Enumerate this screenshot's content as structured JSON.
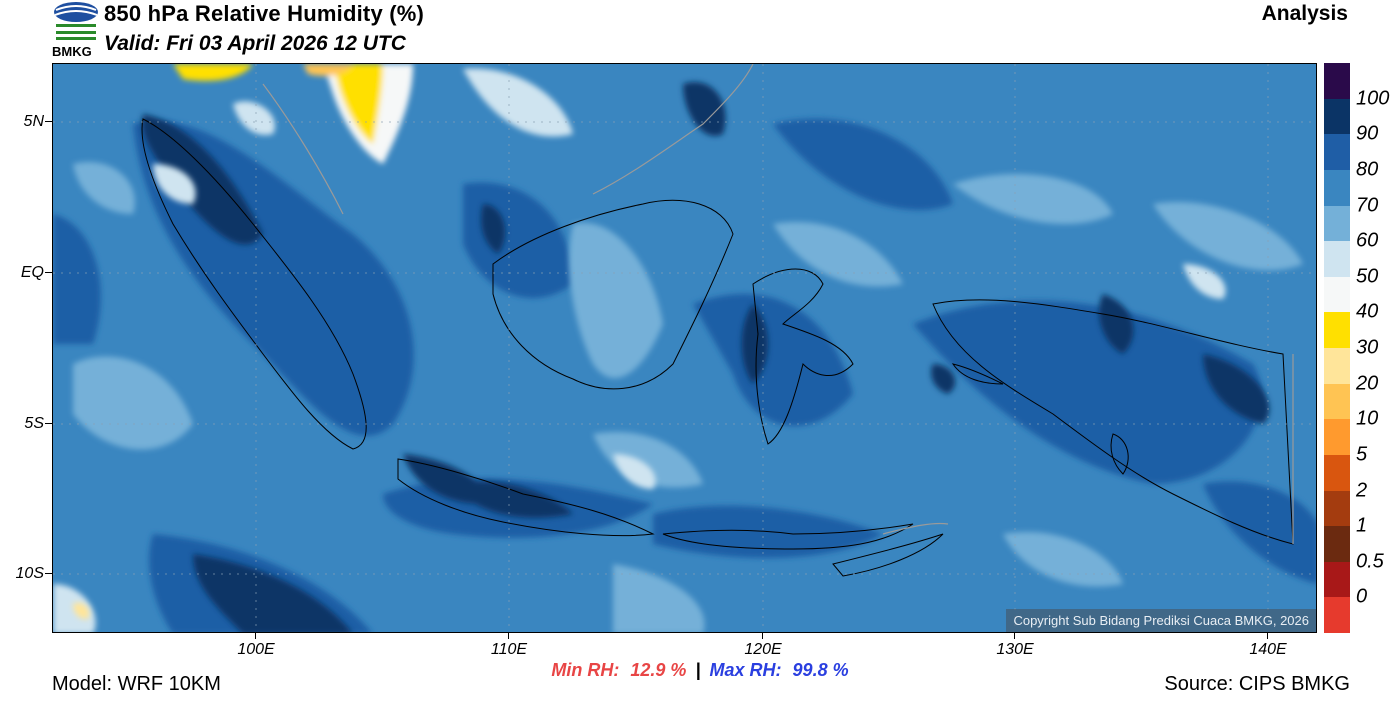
{
  "header": {
    "title": "850 hPa Relative Humidity (%)",
    "valid": "Valid: Fri 03 April 2026 12 UTC",
    "analysis": "Analysis",
    "logo_text": "BMKG"
  },
  "map": {
    "copyright": "Copyright Sub Bidang Prediksi Cuaca BMKG, 2026",
    "lat_labels": [
      "5N",
      "EQ",
      "5S",
      "10S"
    ],
    "lon_labels": [
      "100E",
      "110E",
      "120E",
      "130E",
      "140E"
    ]
  },
  "colorbar": {
    "labels": [
      "100",
      "90",
      "80",
      "70",
      "60",
      "50",
      "40",
      "30",
      "20",
      "10",
      "5",
      "2",
      "1",
      "0.5",
      "0"
    ],
    "colors": [
      "#2a0a4a",
      "#0b3466",
      "#1f5ea6",
      "#3a86c0",
      "#74b0d8",
      "#cfe4f0",
      "#f6f8f8",
      "#ffe000",
      "#ffe59a",
      "#ffc453",
      "#ff9a2e",
      "#d9560f",
      "#a43c0f",
      "#6b2a10",
      "#a81818",
      "#e63a2d"
    ]
  },
  "stats": {
    "min_label": "Min RH:",
    "min_value": "12.9 %",
    "separator": "|",
    "max_label": "Max RH:",
    "max_value": "99.8 %"
  },
  "footer": {
    "model": "Model: WRF 10KM",
    "source": "Source: CIPS BMKG"
  }
}
